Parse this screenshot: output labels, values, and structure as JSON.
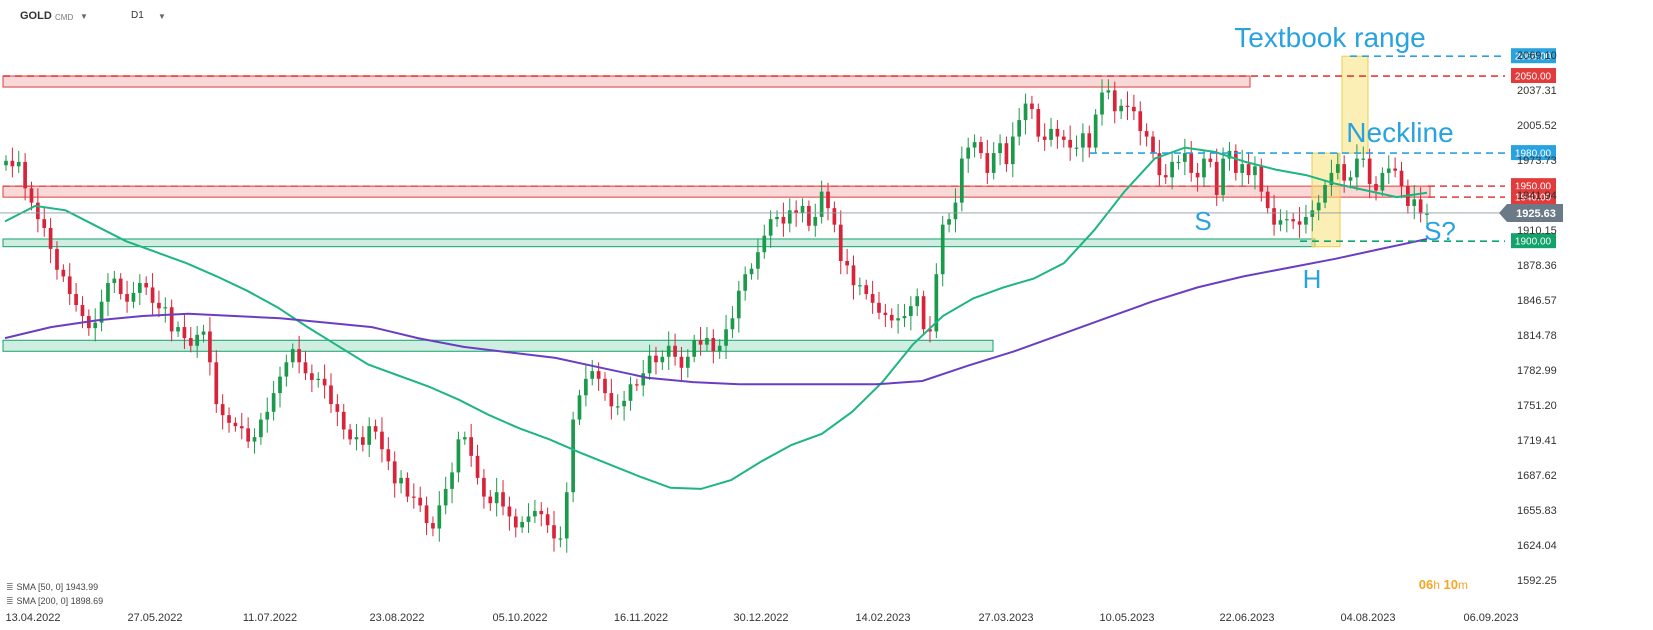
{
  "header": {
    "symbol": "GOLD",
    "exchange": "CMD",
    "timeframe": "D1"
  },
  "indicators": [
    {
      "label": "SMA [50, 0] 1943.99"
    },
    {
      "label": "SMA [200, 0] 1898.69"
    }
  ],
  "timer": {
    "hours": "06",
    "h_unit": "h",
    "minutes": "10",
    "m_unit": "m"
  },
  "chart_data": {
    "type": "candlestick",
    "symbol": "GOLD",
    "timeframe": "D1",
    "ylim": [
      1592.25,
      2085.0
    ],
    "price_ticks": [
      "2069.10",
      "2037.31",
      "2005.52",
      "1973.73",
      "1941.94",
      "1910.15",
      "1878.36",
      "1846.57",
      "1814.78",
      "1782.99",
      "1751.20",
      "1719.41",
      "1687.62",
      "1655.83",
      "1624.04",
      "1592.25"
    ],
    "date_ticks": [
      "13.04.2022",
      "27.05.2022",
      "11.07.2022",
      "23.08.2022",
      "05.10.2022",
      "16.11.2022",
      "30.12.2022",
      "14.02.2023",
      "27.03.2023",
      "10.05.2023",
      "22.06.2023",
      "04.08.2023",
      "06.09.2023"
    ],
    "current_price": "1925.63",
    "horizontal_levels": [
      {
        "value": 2068.0,
        "label": "2068.00",
        "color": "#29a3e0"
      },
      {
        "value": 2050.0,
        "label": "2050.00",
        "color": "#e23b3b"
      },
      {
        "value": 1980.0,
        "label": "1980.00",
        "color": "#29a3e0"
      },
      {
        "value": 1950.0,
        "label": "1950.00",
        "color": "#e23b3b"
      },
      {
        "value": 1940.0,
        "label": "1940.00",
        "color": "#e23b3b"
      },
      {
        "value": 1900.0,
        "label": "1900.00",
        "color": "#12a36b"
      }
    ],
    "zones": [
      {
        "from": 2040.0,
        "to": 2050.0,
        "type": "resistance",
        "color": "#e23b3b"
      },
      {
        "from": 1940.0,
        "to": 1950.0,
        "type": "resistance",
        "color": "#e23b3b"
      },
      {
        "from": 1895.0,
        "to": 1902.0,
        "type": "support",
        "color": "#12a36b"
      },
      {
        "from": 1800.0,
        "to": 1810.0,
        "type": "support",
        "color": "#12a36b"
      }
    ],
    "highlight_boxes": [
      {
        "from": 1895.0,
        "to": 1980.0,
        "color": "#f7e27a"
      },
      {
        "from": 1980.0,
        "to": 2068.0,
        "color": "#f7e27a"
      }
    ],
    "annotations": [
      {
        "text": "Textbook range",
        "color": "#29a3e0"
      },
      {
        "text": "Neckline",
        "color": "#29a3e0"
      },
      {
        "text": "S",
        "color": "#29a3e0"
      },
      {
        "text": "H",
        "color": "#29a3e0"
      },
      {
        "text": "S?",
        "color": "#29a3e0"
      }
    ],
    "series": [
      {
        "name": "SMA [50, 0]",
        "color": "#1db582",
        "values": [
          1918,
          1932,
          1928,
          1914,
          1900,
          1890,
          1880,
          1868,
          1855,
          1840,
          1822,
          1805,
          1788,
          1778,
          1768,
          1756,
          1742,
          1730,
          1720,
          1708,
          1697,
          1686,
          1676,
          1675,
          1683,
          1700,
          1715,
          1725,
          1745,
          1772,
          1806,
          1832,
          1848,
          1858,
          1866,
          1880,
          1910,
          1945,
          1975,
          1985,
          1981,
          1972,
          1965,
          1960,
          1952,
          1946,
          1940,
          1944
        ]
      },
      {
        "name": "SMA [200, 0]",
        "color": "#6a3ec2",
        "values": [
          1812,
          1822,
          1828,
          1832,
          1834,
          1832,
          1830,
          1826,
          1822,
          1812,
          1804,
          1799,
          1794,
          1785,
          1776,
          1772,
          1770,
          1770,
          1770,
          1770,
          1773,
          1787,
          1800,
          1815,
          1830,
          1845,
          1858,
          1868,
          1876,
          1884,
          1893,
          1902
        ]
      }
    ],
    "candles": {
      "close": [
        1973,
        1968,
        1972,
        1948,
        1935,
        1920,
        1912,
        1893,
        1874,
        1868,
        1852,
        1842,
        1832,
        1821,
        1826,
        1845,
        1862,
        1866,
        1852,
        1845,
        1853,
        1862,
        1858,
        1844,
        1839,
        1840,
        1818,
        1822,
        1812,
        1805,
        1815,
        1818,
        1790,
        1752,
        1742,
        1735,
        1732,
        1730,
        1718,
        1722,
        1738,
        1745,
        1762,
        1777,
        1790,
        1802,
        1790,
        1780,
        1774,
        1775,
        1769,
        1752,
        1745,
        1729,
        1720,
        1722,
        1715,
        1732,
        1727,
        1711,
        1700,
        1680,
        1685,
        1668,
        1667,
        1660,
        1644,
        1639,
        1660,
        1675,
        1690,
        1720,
        1722,
        1705,
        1685,
        1668,
        1662,
        1672,
        1659,
        1650,
        1640,
        1645,
        1650,
        1655,
        1652,
        1642,
        1630,
        1630,
        1672,
        1738,
        1760,
        1775,
        1782,
        1775,
        1762,
        1750,
        1750,
        1755,
        1770,
        1769,
        1780,
        1796,
        1790,
        1795,
        1805,
        1795,
        1785,
        1795,
        1810,
        1806,
        1812,
        1800,
        1805,
        1820,
        1830,
        1855,
        1870,
        1875,
        1890,
        1905,
        1920,
        1922,
        1916,
        1928,
        1926,
        1932,
        1914,
        1922,
        1945,
        1930,
        1915,
        1882,
        1878,
        1860,
        1860,
        1852,
        1844,
        1835,
        1833,
        1828,
        1830,
        1832,
        1841,
        1850,
        1820,
        1818,
        1870,
        1915,
        1920,
        1935,
        1975,
        1985,
        1990,
        1980,
        1962,
        1980,
        1989,
        1970,
        1995,
        2010,
        2025,
        2020,
        1995,
        1992,
        2002,
        1995,
        1992,
        1985,
        1985,
        1998,
        1985,
        2015,
        2035,
        2037,
        2018,
        2023,
        2022,
        2018,
        2000,
        1995,
        1980,
        1960,
        1958,
        1972,
        1972,
        1980,
        1962,
        1958,
        1975,
        1972,
        1942,
        1975,
        1982,
        1962,
        1970,
        1960,
        1968,
        1945,
        1930,
        1915,
        1919,
        1920,
        1918,
        1915,
        1922,
        1928,
        1935,
        1951,
        1962,
        1970,
        1955,
        1958,
        1975,
        1975,
        1952,
        1946,
        1962,
        1966,
        1964,
        1950,
        1932,
        1938,
        1925,
        1925
      ]
    }
  }
}
